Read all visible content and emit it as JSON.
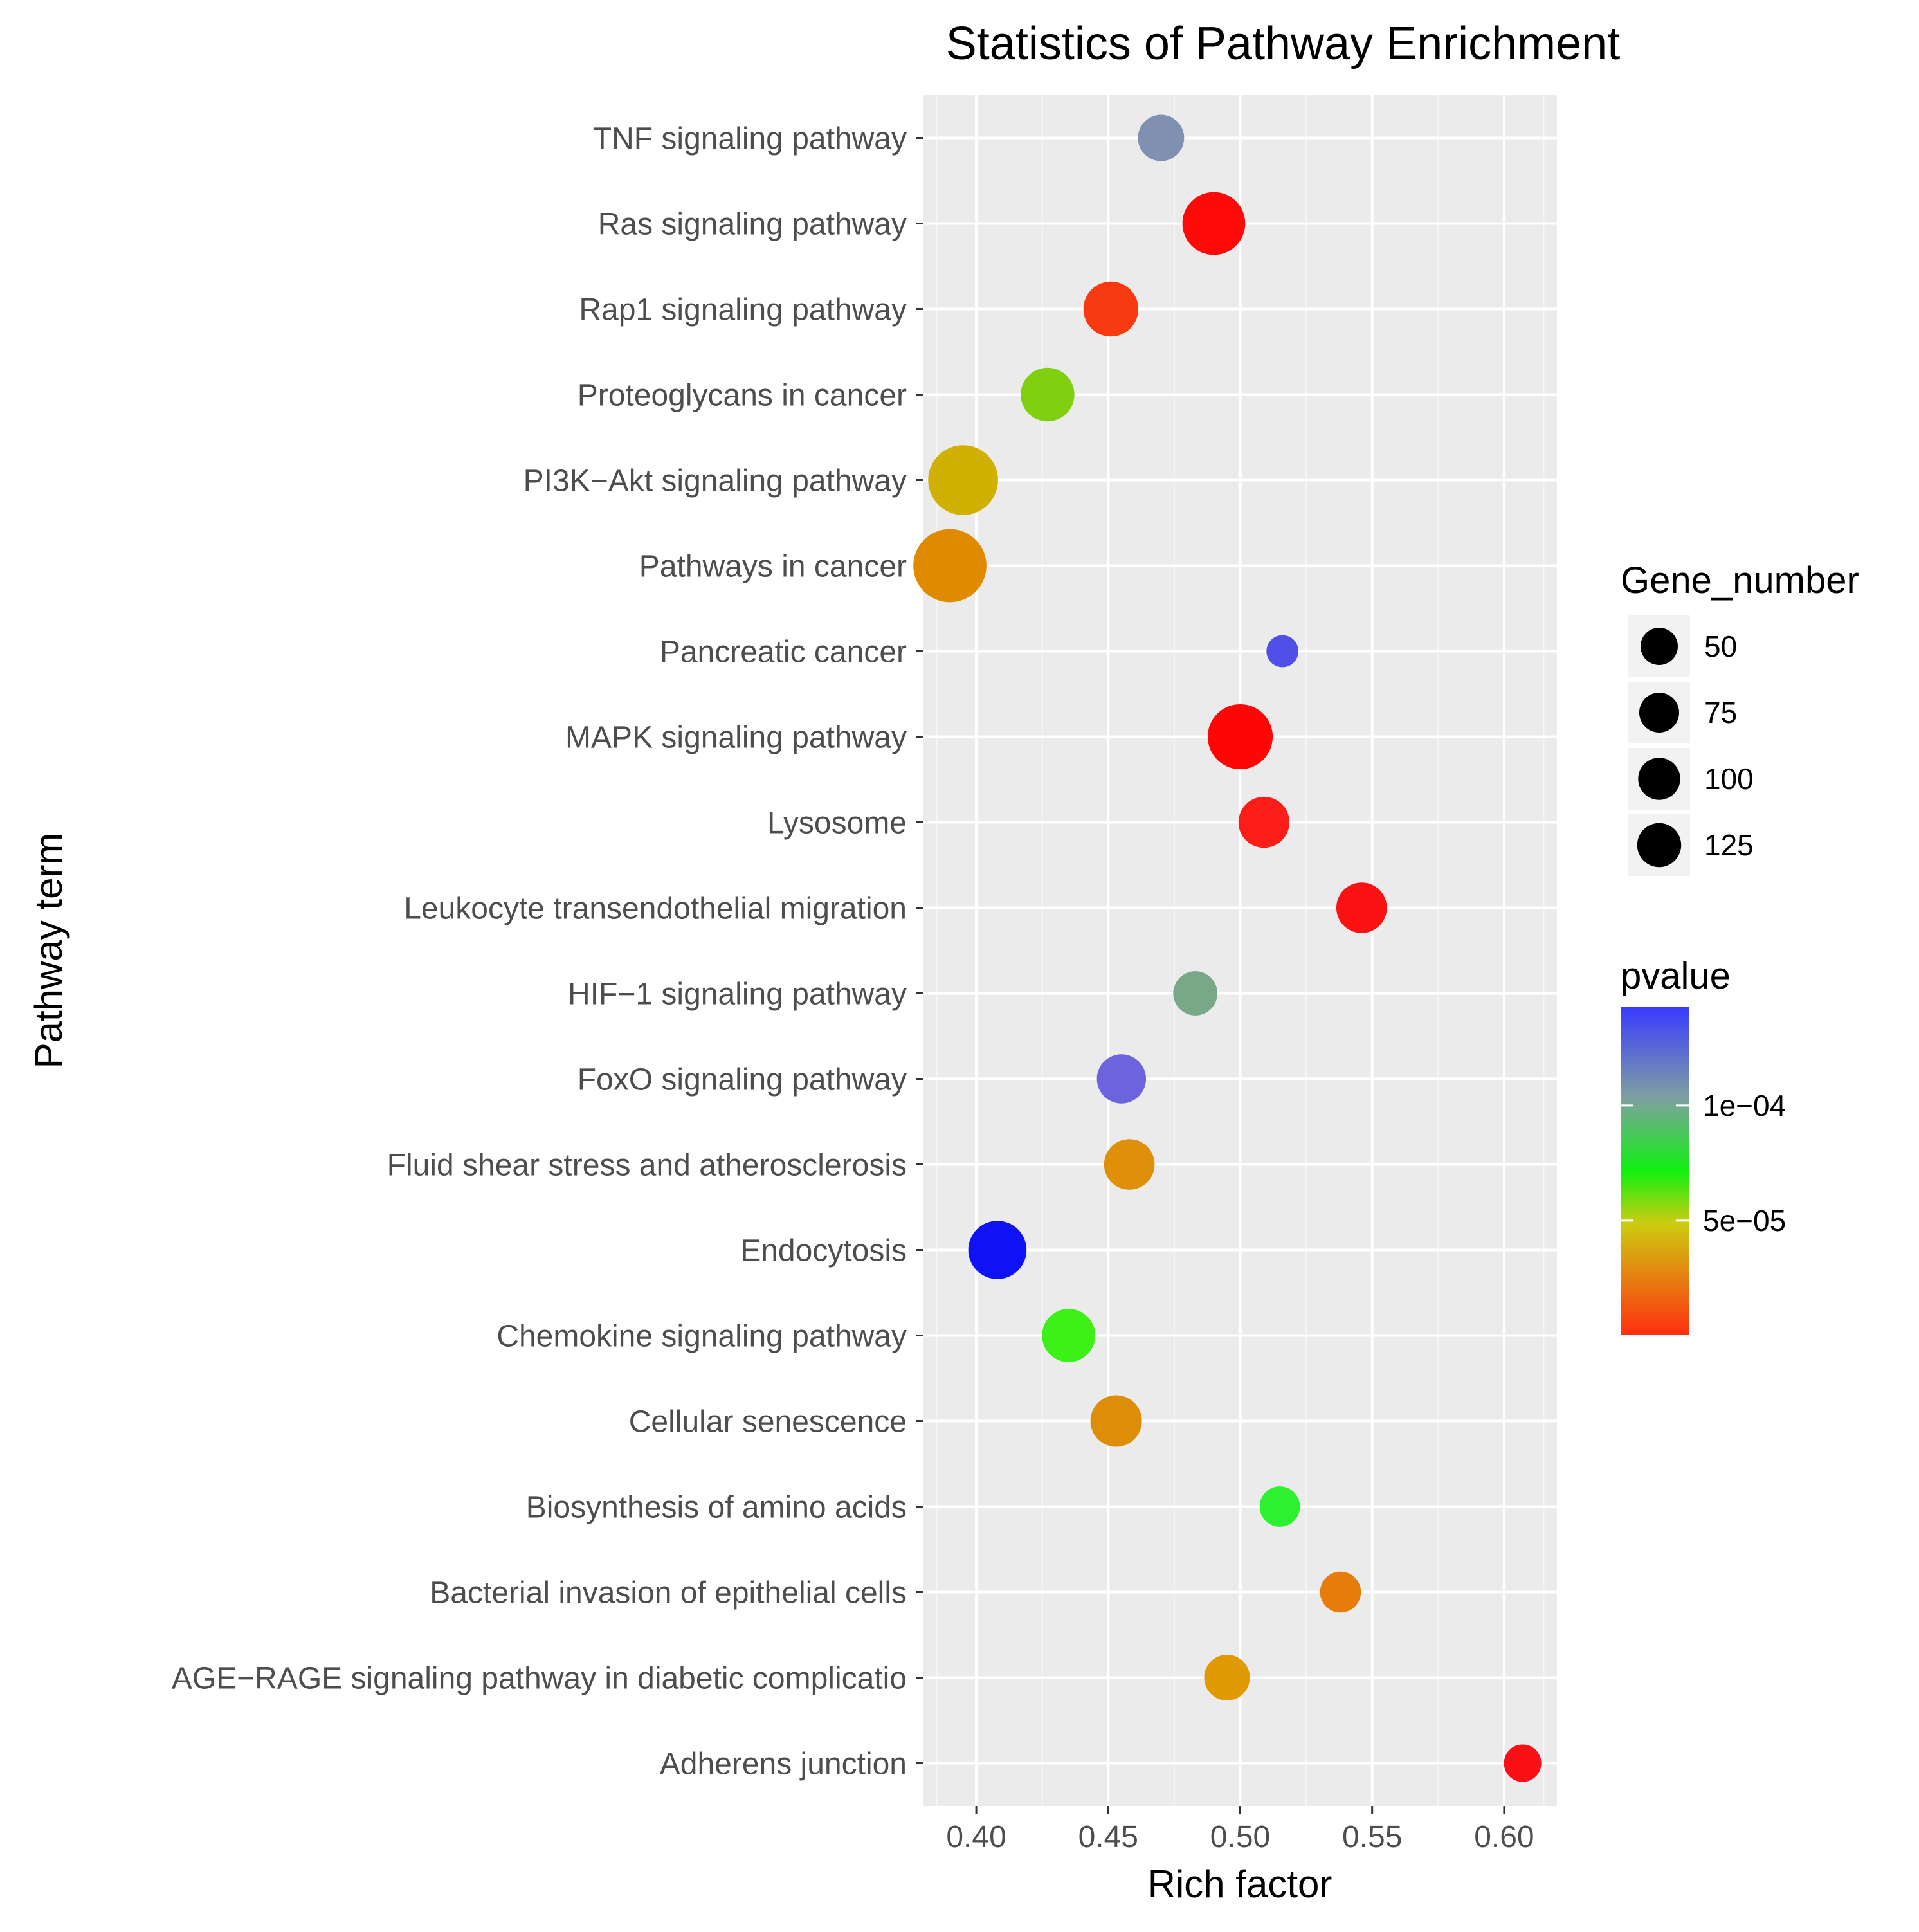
{
  "chart_data": {
    "type": "scatter",
    "title": "Statistics of Pathway Enrichment",
    "xlabel": "Rich factor",
    "ylabel": "Pathway term",
    "xlim": [
      0.38,
      0.62
    ],
    "xticks": [
      0.4,
      0.45,
      0.5,
      0.55,
      0.6
    ],
    "xtick_labels": [
      "0.40",
      "0.45",
      "0.50",
      "0.55",
      "0.60"
    ],
    "grid": true,
    "categories": [
      "TNF signaling pathway",
      "Ras signaling pathway",
      "Rap1 signaling pathway",
      "Proteoglycans in cancer",
      "PI3K−Akt signaling pathway",
      "Pathways in cancer",
      "Pancreatic cancer",
      "MAPK signaling pathway",
      "Lysosome",
      "Leukocyte transendothelial migration",
      "HIF−1 signaling pathway",
      "FoxO signaling pathway",
      "Fluid shear stress and atherosclerosis",
      "Endocytosis",
      "Chemokine signaling pathway",
      "Cellular senescence",
      "Biosynthesis of amino acids",
      "Bacterial invasion of epithelial cells",
      "AGE−RAGE signaling pathway in diabetic complicatio",
      "Adherens junction"
    ],
    "rich_factor": [
      0.47,
      0.49,
      0.451,
      0.427,
      0.395,
      0.39,
      0.516,
      0.5,
      0.509,
      0.546,
      0.483,
      0.455,
      0.458,
      0.408,
      0.435,
      0.453,
      0.515,
      0.538,
      0.495,
      0.607
    ],
    "gene_number": [
      46,
      85,
      65,
      62,
      105,
      115,
      22,
      91,
      56,
      55,
      42,
      52,
      55,
      73,
      61,
      57,
      35,
      36,
      45,
      30
    ],
    "pvalue_colors": [
      "#8090b0",
      "#fe0808",
      "#f83a10",
      "#80d010",
      "#d0b000",
      "#e08a00",
      "#5050e8",
      "#fe0606",
      "#fc1c18",
      "#fc1212",
      "#78a888",
      "#6c64dc",
      "#e09008",
      "#0e12f4",
      "#3cf018",
      "#dd8e06",
      "#2cf030",
      "#e87c08",
      "#e09a04",
      "#fa1014"
    ],
    "legend": {
      "size_title": "Gene_number",
      "size_entries": [
        {
          "label": "50",
          "value": 50
        },
        {
          "label": "75",
          "value": 75
        },
        {
          "label": "100",
          "value": 100
        },
        {
          "label": "125",
          "value": 125
        }
      ],
      "color_title": "pvalue",
      "color_ticks": [
        {
          "label": "1e−04",
          "value": 0.0001
        },
        {
          "label": "5e−05",
          "value": 5e-05
        }
      ],
      "color_range": [
        5e-07,
        0.000143
      ],
      "color_gradient": [
        "#0000ff",
        "#00ff00",
        "#ff0000"
      ]
    }
  }
}
